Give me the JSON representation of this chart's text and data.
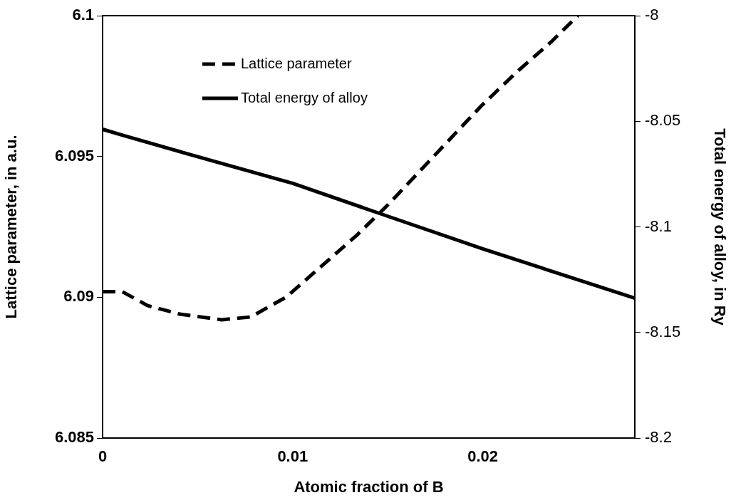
{
  "chart_data": {
    "type": "line",
    "xlabel": "Atomic fraction of B",
    "ylabel": "Lattice parameter, in a.u.",
    "y2label": "Total energy of alloy, in Ry",
    "xlim": [
      0,
      0.028
    ],
    "xticks": [
      0,
      0.01,
      0.02
    ],
    "ylim": [
      6.085,
      6.1
    ],
    "yticks": [
      6.085,
      6.09,
      6.095,
      6.1
    ],
    "y2lim": [
      -8.2,
      -8
    ],
    "y2ticks": [
      -8.2,
      -8.15,
      -8.1,
      -8.05,
      -8
    ],
    "grid": false,
    "legend": "top left",
    "marker": "none",
    "series": [
      {
        "name": "Lattice parameter",
        "color": "#000000",
        "line_style": "dashed",
        "x": [
          0,
          0.00103,
          0.00238,
          0.00407,
          0.00627,
          0.00779,
          0.00965,
          0.01134,
          0.01337,
          0.01489,
          0.01588,
          0.01825,
          0.01993,
          0.02179,
          0.02365,
          0.025
        ],
        "values": [
          6.0902,
          6.0902,
          6.0897,
          6.0894,
          6.0892,
          6.0893,
          6.09,
          6.091,
          6.0922,
          6.0932,
          6.0939,
          6.0956,
          6.0968,
          6.098,
          6.0991,
          6.1
        ]
      },
      {
        "name": "Total energy of alloy",
        "color": "#000000",
        "line_style": "solid",
        "axis": "y2",
        "x": [
          0,
          0.00112,
          0.00492,
          0.01,
          0.01472,
          0.02,
          0.028
        ],
        "values": [
          -8.0538,
          -8.0568,
          -8.0666,
          -8.0794,
          -8.0941,
          -8.1104,
          -8.1338
        ]
      }
    ]
  }
}
